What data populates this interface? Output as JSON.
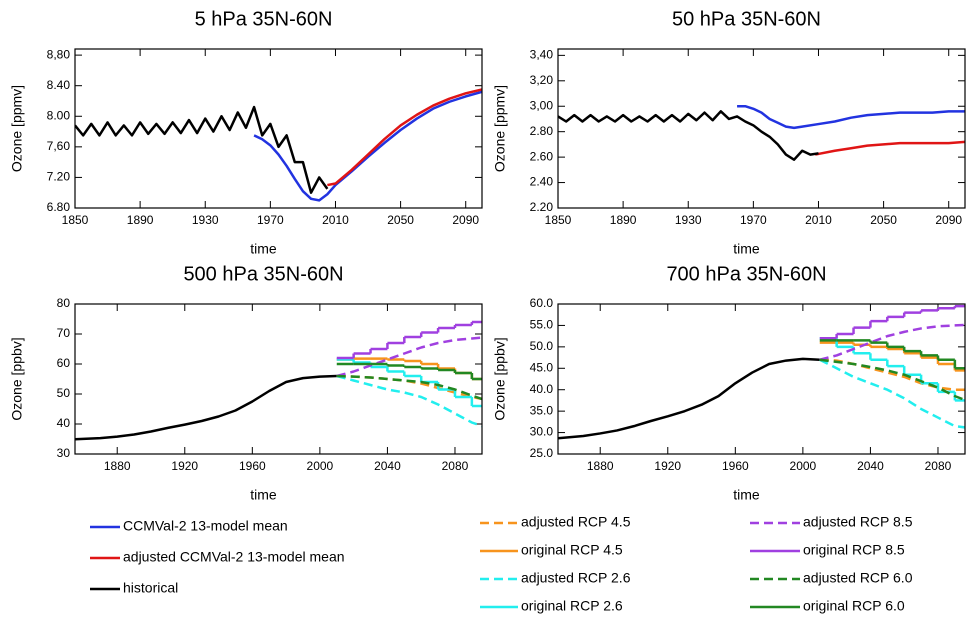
{
  "chart_data": [
    {
      "type": "line",
      "title": "5 hPa  35N-60N",
      "xlabel": "time",
      "ylabel": "Ozone [ppmv]",
      "xlim": [
        1850,
        2100
      ],
      "ylim": [
        6.8,
        8.88
      ],
      "xticks": [
        1850,
        1890,
        1930,
        1970,
        2010,
        2050,
        2090
      ],
      "yticks": [
        {
          "value": 6.8,
          "label": "6.80"
        },
        {
          "value": 7.2,
          "label": "7.20"
        },
        {
          "value": 7.6,
          "label": "7,60"
        },
        {
          "value": 8.0,
          "label": "8.00"
        },
        {
          "value": 8.4,
          "label": "8.40"
        },
        {
          "value": 8.8,
          "label": "8,80"
        }
      ],
      "series": [
        {
          "name": "CCMVal-2 13-model mean",
          "color": "#2233e0",
          "dash": false,
          "x": [
            1960,
            1965,
            1970,
            1975,
            1980,
            1985,
            1990,
            1995,
            2000,
            2005,
            2010,
            2020,
            2030,
            2040,
            2050,
            2060,
            2070,
            2080,
            2090,
            2100
          ],
          "values": [
            7.75,
            7.7,
            7.62,
            7.5,
            7.35,
            7.18,
            7.02,
            6.92,
            6.9,
            6.98,
            7.1,
            7.28,
            7.47,
            7.65,
            7.82,
            7.97,
            8.1,
            8.19,
            8.26,
            8.32
          ]
        },
        {
          "name": "adjusted CCMVal-2 13-model mean",
          "color": "#e01515",
          "dash": false,
          "x": [
            2005,
            2010,
            2020,
            2030,
            2040,
            2050,
            2060,
            2070,
            2080,
            2090,
            2100
          ],
          "values": [
            7.1,
            7.12,
            7.3,
            7.5,
            7.7,
            7.88,
            8.02,
            8.14,
            8.23,
            8.3,
            8.35
          ]
        },
        {
          "name": "historical",
          "color": "#000000",
          "dash": false,
          "x": [
            1850,
            1855,
            1860,
            1865,
            1870,
            1875,
            1880,
            1885,
            1890,
            1895,
            1900,
            1905,
            1910,
            1915,
            1920,
            1925,
            1930,
            1935,
            1940,
            1945,
            1950,
            1955,
            1960,
            1965,
            1970,
            1975,
            1980,
            1985,
            1990,
            1995,
            2000,
            2005
          ],
          "values": [
            7.88,
            7.75,
            7.9,
            7.75,
            7.92,
            7.75,
            7.88,
            7.75,
            7.92,
            7.77,
            7.9,
            7.77,
            7.92,
            7.78,
            7.95,
            7.78,
            7.97,
            7.8,
            8.0,
            7.82,
            8.05,
            7.85,
            8.12,
            7.75,
            7.9,
            7.6,
            7.75,
            7.4,
            7.4,
            7.0,
            7.2,
            7.05
          ]
        }
      ]
    },
    {
      "type": "line",
      "title": "50 hPa  35N-60N",
      "xlabel": "time",
      "ylabel": "Ozone [ppmv]",
      "xlim": [
        1850,
        2100
      ],
      "ylim": [
        2.2,
        3.45
      ],
      "xticks": [
        1850,
        1890,
        1930,
        1970,
        2010,
        2050,
        2090
      ],
      "yticks": [
        {
          "value": 2.2,
          "label": "2.20"
        },
        {
          "value": 2.4,
          "label": "2.40"
        },
        {
          "value": 2.6,
          "label": "2.60"
        },
        {
          "value": 2.8,
          "label": "2.80"
        },
        {
          "value": 3.0,
          "label": "3,00"
        },
        {
          "value": 3.2,
          "label": "3,20"
        },
        {
          "value": 3.4,
          "label": "3,40"
        }
      ],
      "series": [
        {
          "name": "CCMVal-2 13-model mean",
          "color": "#2233e0",
          "dash": false,
          "x": [
            1960,
            1965,
            1970,
            1975,
            1980,
            1985,
            1990,
            1995,
            2000,
            2010,
            2020,
            2030,
            2040,
            2050,
            2060,
            2070,
            2080,
            2090,
            2100
          ],
          "values": [
            3.0,
            3.0,
            2.98,
            2.95,
            2.9,
            2.87,
            2.84,
            2.83,
            2.84,
            2.86,
            2.88,
            2.91,
            2.93,
            2.94,
            2.95,
            2.95,
            2.95,
            2.96,
            2.96
          ]
        },
        {
          "name": "adjusted CCMVal-2 13-model mean",
          "color": "#e01515",
          "dash": false,
          "x": [
            2008,
            2020,
            2030,
            2040,
            2050,
            2060,
            2070,
            2080,
            2090,
            2100
          ],
          "values": [
            2.62,
            2.65,
            2.67,
            2.69,
            2.7,
            2.71,
            2.71,
            2.71,
            2.71,
            2.72
          ]
        },
        {
          "name": "historical",
          "color": "#000000",
          "dash": false,
          "x": [
            1850,
            1855,
            1860,
            1865,
            1870,
            1875,
            1880,
            1885,
            1890,
            1895,
            1900,
            1905,
            1910,
            1915,
            1920,
            1925,
            1930,
            1935,
            1940,
            1945,
            1950,
            1955,
            1960,
            1965,
            1970,
            1975,
            1980,
            1985,
            1990,
            1995,
            2000,
            2005,
            2010
          ],
          "values": [
            2.92,
            2.88,
            2.93,
            2.88,
            2.93,
            2.88,
            2.92,
            2.88,
            2.93,
            2.88,
            2.92,
            2.88,
            2.93,
            2.88,
            2.93,
            2.88,
            2.94,
            2.89,
            2.95,
            2.89,
            2.96,
            2.9,
            2.92,
            2.88,
            2.85,
            2.8,
            2.76,
            2.7,
            2.62,
            2.58,
            2.65,
            2.62,
            2.63
          ]
        }
      ]
    },
    {
      "type": "line",
      "title": "500 hPa  35N-60N",
      "xlabel": "time",
      "ylabel": "Ozone [ppbv]",
      "xlim": [
        1855,
        2096
      ],
      "ylim": [
        30,
        80
      ],
      "xticks": [
        1880,
        1920,
        1960,
        2000,
        2040,
        2080
      ],
      "yticks": [
        30,
        40,
        50,
        60,
        70,
        80
      ],
      "series": [
        {
          "name": "historical",
          "color": "#000000",
          "dash": false,
          "x": [
            1850,
            1870,
            1880,
            1890,
            1900,
            1910,
            1920,
            1930,
            1940,
            1950,
            1960,
            1970,
            1980,
            1990,
            2000,
            2010
          ],
          "values": [
            34.8,
            35.3,
            35.8,
            36.5,
            37.5,
            38.7,
            39.8,
            41,
            42.5,
            44.5,
            47.5,
            51,
            54,
            55.3,
            55.8,
            56
          ]
        },
        {
          "name": "adjusted RCP 4.5",
          "color": "#f7941d",
          "dash": true,
          "x": [
            2010,
            2020,
            2030,
            2040,
            2050,
            2060,
            2070,
            2080,
            2090,
            2100
          ],
          "values": [
            56,
            55.8,
            55.5,
            55,
            54.5,
            53.5,
            52,
            50.5,
            49,
            48
          ]
        },
        {
          "name": "original RCP 4.5",
          "color": "#f7941d",
          "dash": false,
          "step": true,
          "x": [
            2010,
            2020,
            2030,
            2040,
            2050,
            2060,
            2070,
            2080,
            2090
          ],
          "values": [
            61.5,
            61.8,
            61.8,
            61.5,
            61,
            60,
            58.5,
            57,
            55
          ]
        },
        {
          "name": "adjusted RCP 2.6",
          "color": "#22eeee",
          "dash": true,
          "x": [
            2010,
            2020,
            2030,
            2040,
            2050,
            2060,
            2070,
            2080,
            2090,
            2100
          ],
          "values": [
            56,
            54.5,
            53,
            51.5,
            50.5,
            49,
            46.5,
            43.5,
            40.5,
            38.5
          ]
        },
        {
          "name": "original RCP 2.6",
          "color": "#22eeee",
          "dash": false,
          "step": true,
          "x": [
            2010,
            2020,
            2030,
            2040,
            2050,
            2060,
            2070,
            2080,
            2090
          ],
          "values": [
            61.5,
            60.5,
            59,
            57.5,
            56,
            54,
            51.5,
            49,
            46
          ]
        },
        {
          "name": "adjusted RCP 8.5",
          "color": "#a040e0",
          "dash": true,
          "x": [
            2010,
            2020,
            2030,
            2040,
            2050,
            2060,
            2070,
            2080,
            2090,
            2100
          ],
          "values": [
            56,
            57.5,
            59.5,
            61.5,
            63.5,
            65.5,
            67,
            68,
            68.5,
            69
          ]
        },
        {
          "name": "original RCP 8.5",
          "color": "#a040e0",
          "dash": false,
          "step": true,
          "x": [
            2010,
            2020,
            2030,
            2040,
            2050,
            2060,
            2070,
            2080,
            2090
          ],
          "values": [
            62,
            63.5,
            65,
            67,
            69,
            70.5,
            72,
            73,
            74
          ]
        },
        {
          "name": "adjusted RCP 6.0",
          "color": "#228822",
          "dash": true,
          "x": [
            2010,
            2020,
            2030,
            2040,
            2050,
            2060,
            2070,
            2080,
            2090,
            2100
          ],
          "values": [
            56,
            55.8,
            55.5,
            55,
            54.5,
            54,
            53,
            51.5,
            49.5,
            47.5
          ]
        },
        {
          "name": "original RCP 6.0",
          "color": "#228822",
          "dash": false,
          "step": true,
          "x": [
            2010,
            2020,
            2030,
            2040,
            2050,
            2060,
            2070,
            2080,
            2090
          ],
          "values": [
            60,
            60,
            60,
            59.5,
            59,
            58.5,
            58,
            57,
            55
          ]
        }
      ]
    },
    {
      "type": "line",
      "title": "700 hPa  35N-60N",
      "xlabel": "time",
      "ylabel": "Ozone [ppbv]",
      "xlim": [
        1855,
        2096
      ],
      "ylim": [
        25,
        60
      ],
      "xticks": [
        1880,
        1920,
        1960,
        2000,
        2040,
        2080
      ],
      "yticks": [
        {
          "value": 25,
          "label": "25.0"
        },
        {
          "value": 30,
          "label": "30.0"
        },
        {
          "value": 35,
          "label": "35.0"
        },
        {
          "value": 40,
          "label": "40.0"
        },
        {
          "value": 45,
          "label": "45.0"
        },
        {
          "value": 50,
          "label": "50.0"
        },
        {
          "value": 55,
          "label": "55.0"
        },
        {
          "value": 60,
          "label": "60.0"
        }
      ],
      "series": [
        {
          "name": "historical",
          "color": "#000000",
          "dash": false,
          "x": [
            1850,
            1870,
            1880,
            1890,
            1900,
            1910,
            1920,
            1930,
            1940,
            1950,
            1960,
            1970,
            1980,
            1990,
            2000,
            2010
          ],
          "values": [
            28.5,
            29.2,
            29.8,
            30.5,
            31.5,
            32.7,
            33.8,
            35,
            36.5,
            38.5,
            41.5,
            44,
            46,
            46.8,
            47.2,
            47
          ]
        },
        {
          "name": "adjusted RCP 4.5",
          "color": "#f7941d",
          "dash": true,
          "x": [
            2010,
            2020,
            2030,
            2040,
            2050,
            2060,
            2070,
            2080,
            2090,
            2100
          ],
          "values": [
            47,
            46.8,
            46,
            45,
            44,
            43,
            41.5,
            40.5,
            40,
            40
          ]
        },
        {
          "name": "original RCP 4.5",
          "color": "#f7941d",
          "dash": false,
          "step": true,
          "x": [
            2010,
            2020,
            2030,
            2040,
            2050,
            2060,
            2070,
            2080,
            2090
          ],
          "values": [
            51,
            51,
            50.5,
            50,
            49.5,
            48.5,
            47.5,
            46,
            44.5
          ]
        },
        {
          "name": "adjusted RCP 2.6",
          "color": "#22eeee",
          "dash": true,
          "x": [
            2010,
            2020,
            2030,
            2040,
            2050,
            2060,
            2070,
            2080,
            2090,
            2100
          ],
          "values": [
            47,
            45,
            43,
            41.5,
            40,
            38,
            35.5,
            33.5,
            31.5,
            31
          ]
        },
        {
          "name": "original RCP 2.6",
          "color": "#22eeee",
          "dash": false,
          "step": true,
          "x": [
            2010,
            2020,
            2030,
            2040,
            2050,
            2060,
            2070,
            2080,
            2090
          ],
          "values": [
            52,
            50,
            48.5,
            47,
            45.5,
            43.5,
            41.5,
            39.5,
            37.5
          ]
        },
        {
          "name": "adjusted RCP 8.5",
          "color": "#a040e0",
          "dash": true,
          "x": [
            2010,
            2020,
            2030,
            2040,
            2050,
            2060,
            2070,
            2080,
            2090,
            2100
          ],
          "values": [
            47,
            48,
            49.5,
            51,
            52.5,
            53.5,
            54.3,
            54.8,
            55,
            55.2
          ]
        },
        {
          "name": "original RCP 8.5",
          "color": "#a040e0",
          "dash": false,
          "step": true,
          "x": [
            2010,
            2020,
            2030,
            2040,
            2050,
            2060,
            2070,
            2080,
            2090
          ],
          "values": [
            52,
            53,
            54.5,
            56,
            57,
            58,
            58.5,
            59,
            59.5
          ]
        },
        {
          "name": "adjusted RCP 6.0",
          "color": "#228822",
          "dash": true,
          "x": [
            2010,
            2020,
            2030,
            2040,
            2050,
            2060,
            2070,
            2080,
            2090,
            2100
          ],
          "values": [
            47,
            46.5,
            46,
            45.3,
            44.5,
            43.5,
            42,
            40.5,
            38.5,
            37
          ]
        },
        {
          "name": "original RCP 6.0",
          "color": "#228822",
          "dash": false,
          "step": true,
          "x": [
            2010,
            2020,
            2030,
            2040,
            2050,
            2060,
            2070,
            2080,
            2090
          ],
          "values": [
            51.5,
            51.5,
            51.5,
            51,
            50,
            49,
            48,
            47,
            45
          ]
        }
      ]
    }
  ]
}
